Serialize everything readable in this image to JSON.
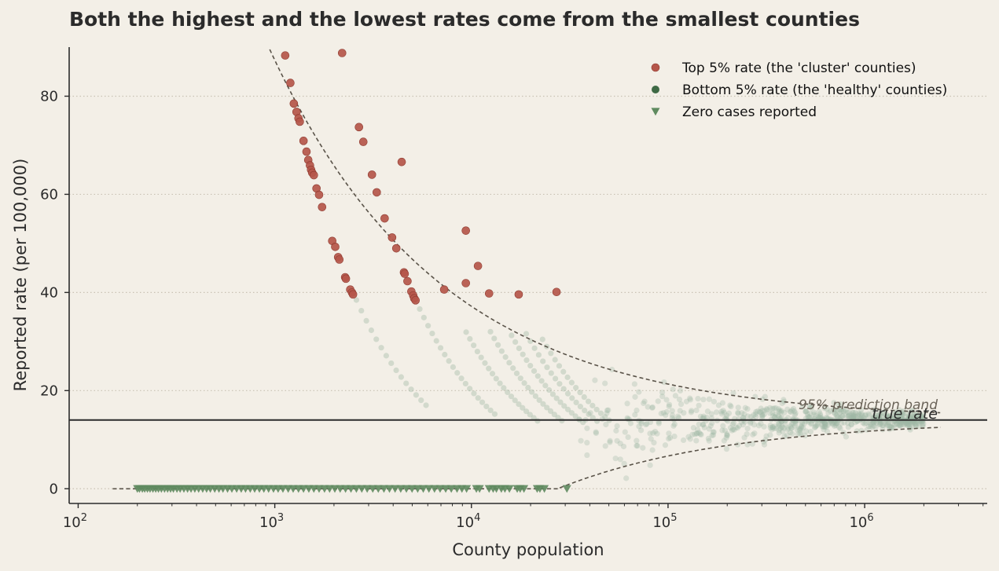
{
  "chart_data": {
    "type": "scatter",
    "title": "Both the highest and the lowest rates come from the smallest counties",
    "xlabel": "County population",
    "ylabel": "Reported rate  (per 100,000)",
    "x_scale": "log",
    "xlim": [
      90,
      4200000
    ],
    "ylim": [
      -3,
      90
    ],
    "x_ticks": [
      100,
      1000,
      10000,
      100000,
      1000000
    ],
    "x_tick_labels": [
      [
        "10",
        "2"
      ],
      [
        "10",
        "3"
      ],
      [
        "10",
        "4"
      ],
      [
        "10",
        "5"
      ],
      [
        "10",
        "6"
      ]
    ],
    "y_ticks": [
      0,
      20,
      40,
      60,
      80
    ],
    "y_tick_labels": [
      "0",
      "20",
      "40",
      "60",
      "80"
    ],
    "grid": "horizontal dotted",
    "legend_position": "top-right",
    "colors": {
      "top": "#b5564a",
      "bottom": "#3f6a45",
      "zero": "#5f8a5f",
      "background_points": "#9fb8a4",
      "band": "#5a5349",
      "true_line": "#2b2b2b",
      "bg": "#f3efe7"
    },
    "true_rate": 14,
    "annotations": {
      "true_rate_label": "true rate",
      "band_label": "95% prediction band"
    },
    "series": [
      {
        "name": "Top 5% rate (the 'cluster' counties)",
        "marker": "circle",
        "points": [
          [
            1130,
            88.3
          ],
          [
            1200,
            82.7
          ],
          [
            1250,
            78.5
          ],
          [
            1290,
            76.8
          ],
          [
            1320,
            75.5
          ],
          [
            1340,
            74.8
          ],
          [
            1400,
            70.9
          ],
          [
            1450,
            68.7
          ],
          [
            1480,
            67
          ],
          [
            1510,
            65.9
          ],
          [
            1530,
            65
          ],
          [
            1550,
            64.4
          ],
          [
            1580,
            63.9
          ],
          [
            1630,
            61.2
          ],
          [
            1680,
            59.9
          ],
          [
            1740,
            57.4
          ],
          [
            1960,
            50.5
          ],
          [
            2030,
            49.3
          ],
          [
            2100,
            47.2
          ],
          [
            2130,
            46.7
          ],
          [
            2280,
            43.1
          ],
          [
            2300,
            42.8
          ],
          [
            2420,
            40.6
          ],
          [
            2470,
            40
          ],
          [
            2500,
            39.6
          ],
          [
            2200,
            88.8
          ],
          [
            2680,
            73.7
          ],
          [
            2820,
            70.7
          ],
          [
            3120,
            64
          ],
          [
            3300,
            60.4
          ],
          [
            3620,
            55.1
          ],
          [
            3950,
            51.2
          ],
          [
            4150,
            49
          ],
          [
            4420,
            66.6
          ],
          [
            4540,
            44.1
          ],
          [
            4580,
            43.8
          ],
          [
            4730,
            42.3
          ],
          [
            4950,
            40.2
          ],
          [
            5060,
            39.4
          ],
          [
            5120,
            38.8
          ],
          [
            5200,
            38.4
          ],
          [
            7270,
            40.6
          ],
          [
            9370,
            52.6
          ],
          [
            9370,
            41.9
          ],
          [
            10800,
            45.4
          ],
          [
            12300,
            39.8
          ],
          [
            17400,
            39.6
          ],
          [
            27100,
            40.1
          ]
        ]
      },
      {
        "name": "Bottom 5% rate (the 'healthy' counties)",
        "marker": "circle",
        "points": []
      },
      {
        "name": "Zero cases reported",
        "marker": "triangle-down",
        "points": [
          [
            200,
            0
          ],
          [
            205,
            0
          ],
          [
            212,
            0
          ],
          [
            218,
            0
          ],
          [
            225,
            0
          ],
          [
            232,
            0
          ],
          [
            240,
            0
          ],
          [
            248,
            0
          ],
          [
            256,
            0
          ],
          [
            265,
            0
          ],
          [
            275,
            0
          ],
          [
            285,
            0
          ],
          [
            295,
            0
          ],
          [
            305,
            0
          ],
          [
            318,
            0
          ],
          [
            330,
            0
          ],
          [
            345,
            0
          ],
          [
            360,
            0
          ],
          [
            375,
            0
          ],
          [
            392,
            0
          ],
          [
            410,
            0
          ],
          [
            430,
            0
          ],
          [
            450,
            0
          ],
          [
            470,
            0
          ],
          [
            495,
            0
          ],
          [
            520,
            0
          ],
          [
            545,
            0
          ],
          [
            575,
            0
          ],
          [
            605,
            0
          ],
          [
            640,
            0
          ],
          [
            675,
            0
          ],
          [
            710,
            0
          ],
          [
            750,
            0
          ],
          [
            790,
            0
          ],
          [
            835,
            0
          ],
          [
            880,
            0
          ],
          [
            930,
            0
          ],
          [
            985,
            0
          ],
          [
            1040,
            0
          ],
          [
            1100,
            0
          ],
          [
            1170,
            0
          ],
          [
            1240,
            0
          ],
          [
            1320,
            0
          ],
          [
            1400,
            0
          ],
          [
            1490,
            0
          ],
          [
            1580,
            0
          ],
          [
            1680,
            0
          ],
          [
            1790,
            0
          ],
          [
            1900,
            0
          ],
          [
            2020,
            0
          ],
          [
            2150,
            0
          ],
          [
            2290,
            0
          ],
          [
            2440,
            0
          ],
          [
            2600,
            0
          ],
          [
            2770,
            0
          ],
          [
            2950,
            0
          ],
          [
            3150,
            0
          ],
          [
            3360,
            0
          ],
          [
            3590,
            0
          ],
          [
            3830,
            0
          ],
          [
            4090,
            0
          ],
          [
            4370,
            0
          ],
          [
            4670,
            0
          ],
          [
            4990,
            0
          ],
          [
            5330,
            0
          ],
          [
            5690,
            0
          ],
          [
            6080,
            0
          ],
          [
            6490,
            0
          ],
          [
            6930,
            0
          ],
          [
            7400,
            0
          ],
          [
            7900,
            0
          ],
          [
            8450,
            0
          ],
          [
            8950,
            0
          ],
          [
            9450,
            0
          ],
          [
            10600,
            0
          ],
          [
            11000,
            0
          ],
          [
            12300,
            0
          ],
          [
            12900,
            0
          ],
          [
            13400,
            0
          ],
          [
            14200,
            0
          ],
          [
            14800,
            0
          ],
          [
            15600,
            0
          ],
          [
            17100,
            0
          ],
          [
            17700,
            0
          ],
          [
            18500,
            0
          ],
          [
            21600,
            0
          ],
          [
            22300,
            0
          ],
          [
            23500,
            0
          ],
          [
            30600,
            0
          ]
        ]
      },
      {
        "name": "",
        "marker": "circle",
        "faint": true,
        "curves": [
          {
            "cases": 1,
            "x_from": 2600,
            "x_to": 6000,
            "step": 1.06
          },
          {
            "cases": 2,
            "x_from": 5200,
            "x_to": 13500,
            "step": 1.05
          },
          {
            "cases": 3,
            "x_from": 9400,
            "x_to": 22000,
            "step": 1.045
          },
          {
            "cases": 4,
            "x_from": 12500,
            "x_to": 30000,
            "step": 1.045
          },
          {
            "cases": 5,
            "x_from": 16000,
            "x_to": 37000,
            "step": 1.045
          },
          {
            "cases": 6,
            "x_from": 19000,
            "x_to": 45000,
            "step": 1.05
          },
          {
            "cases": 7,
            "x_from": 23000,
            "x_to": 52000,
            "step": 1.05
          }
        ],
        "cloud": {
          "x_from": 35000,
          "x_to": 2000000,
          "center": 14,
          "count": 700
        }
      }
    ]
  }
}
